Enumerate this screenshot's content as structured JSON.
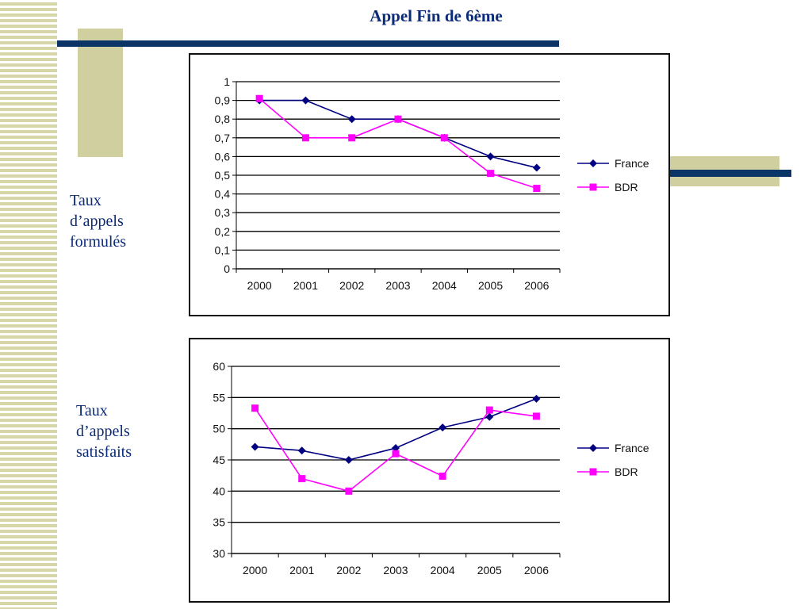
{
  "slide": {
    "title": "Appel Fin de 6ème",
    "label_top": [
      "Taux",
      "d’appels",
      "formulés"
    ],
    "label_bottom": [
      "Taux",
      "d’appels",
      "satisfaits"
    ]
  },
  "colors": {
    "france": "#000080",
    "bdr": "#ff00ff",
    "accent_navy": "#0a3566",
    "accent_khaki": "#cfcf9f"
  },
  "chart_data": [
    {
      "type": "line",
      "title": "",
      "xlabel": "",
      "ylabel": "",
      "categories": [
        "2000",
        "2001",
        "2002",
        "2003",
        "2004",
        "2005",
        "2006"
      ],
      "ylim": [
        0,
        1
      ],
      "yticks": [
        "0",
        "0,1",
        "0,2",
        "0,3",
        "0,4",
        "0,5",
        "0,6",
        "0,7",
        "0,8",
        "0,9",
        "1"
      ],
      "grid": true,
      "legend": "right",
      "series": [
        {
          "name": "France",
          "values": [
            0.9,
            0.9,
            0.8,
            0.8,
            0.7,
            0.6,
            0.54
          ],
          "marker": "diamond"
        },
        {
          "name": "BDR",
          "values": [
            0.91,
            0.7,
            0.7,
            0.8,
            0.7,
            0.51,
            0.43
          ],
          "marker": "square"
        }
      ]
    },
    {
      "type": "line",
      "title": "",
      "xlabel": "",
      "ylabel": "",
      "categories": [
        "2000",
        "2001",
        "2002",
        "2003",
        "2004",
        "2005",
        "2006"
      ],
      "ylim": [
        30,
        60
      ],
      "yticks": [
        "30",
        "35",
        "40",
        "45",
        "50",
        "55",
        "60"
      ],
      "grid": true,
      "legend": "right",
      "series": [
        {
          "name": "France",
          "values": [
            47.1,
            46.5,
            45.0,
            46.9,
            50.2,
            51.9,
            54.8
          ],
          "marker": "diamond"
        },
        {
          "name": "BDR",
          "values": [
            53.3,
            42.0,
            40.0,
            46.0,
            42.4,
            53.0,
            52.0
          ],
          "marker": "square"
        }
      ]
    }
  ]
}
